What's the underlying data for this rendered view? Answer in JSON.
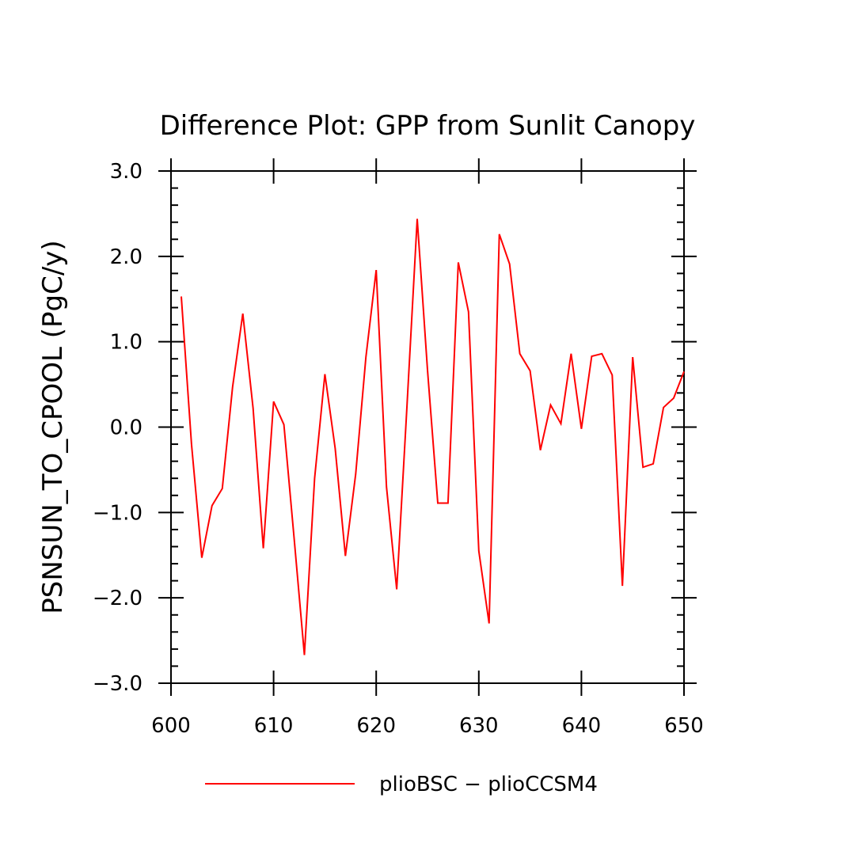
{
  "chart_data": {
    "type": "line",
    "title": "Difference Plot: GPP from Sunlit Canopy",
    "xlabel": "",
    "ylabel": "PSNSUN_TO_CPOOL  (PgC/y)",
    "xlim": [
      600,
      650
    ],
    "ylim": [
      -3.0,
      3.0
    ],
    "x_ticks": [
      600,
      610,
      620,
      630,
      640,
      650
    ],
    "x_tick_labels": [
      "600",
      "610",
      "620",
      "630",
      "640",
      "650"
    ],
    "y_ticks": [
      3.0,
      2.0,
      1.0,
      0.0,
      -1.0,
      -2.0,
      -3.0
    ],
    "y_tick_labels": [
      "3.0",
      "2.0",
      "1.0",
      "0.0",
      "−1.0",
      "−2.0",
      "−3.0"
    ],
    "grid": false,
    "legend_position": "bottom",
    "series": [
      {
        "name": "plioBSC − plioCCSM4",
        "color": "#ff0000",
        "x": [
          601,
          602,
          603,
          604,
          605,
          606,
          607,
          608,
          609,
          610,
          611,
          612,
          613,
          614,
          615,
          616,
          617,
          618,
          619,
          620,
          621,
          622,
          623,
          624,
          625,
          626,
          627,
          628,
          629,
          630,
          631,
          632,
          633,
          634,
          635,
          636,
          637,
          638,
          639,
          640,
          641,
          642,
          643,
          644,
          645,
          646,
          647,
          648,
          649,
          650
        ],
        "y": [
          1.53,
          -0.2,
          -1.53,
          -0.92,
          -0.72,
          0.47,
          1.33,
          0.22,
          -1.42,
          0.3,
          0.03,
          -1.3,
          -2.67,
          -0.6,
          0.62,
          -0.25,
          -1.51,
          -0.55,
          0.82,
          1.84,
          -0.7,
          -1.9,
          0.25,
          2.44,
          0.67,
          -0.89,
          -0.89,
          1.93,
          1.35,
          -1.45,
          -2.3,
          2.26,
          1.91,
          0.86,
          0.66,
          -0.27,
          0.26,
          0.04,
          0.86,
          -0.02,
          0.83,
          0.86,
          0.61,
          -1.86,
          0.82,
          -0.47,
          -0.43,
          0.23,
          0.34,
          0.65
        ]
      }
    ]
  }
}
